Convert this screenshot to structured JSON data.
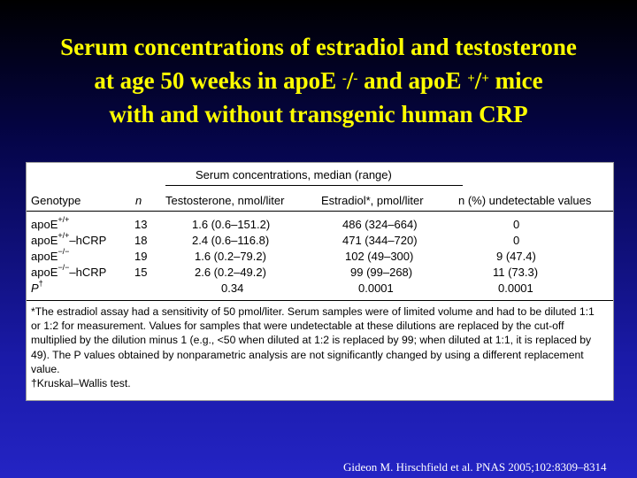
{
  "slide": {
    "title_line1": "Serum concentrations of estradiol and testosterone",
    "title_line2_pre": "at age 50 weeks in apoE ",
    "title_line2_sup1": "-",
    "title_line2_mid1": "/",
    "title_line2_sup2": "-",
    "title_line2_mid2": " and apoE ",
    "title_line2_sup3": "+",
    "title_line2_mid3": "/",
    "title_line2_sup4": "+",
    "title_line2_post": " mice",
    "title_line3": "with and without transgenic human CRP",
    "citation": "Gideon M. Hirschfield et al. PNAS 2005;102:8309–8314"
  },
  "table": {
    "span_header": "Serum concentrations, median (range)",
    "columns": [
      "Genotype",
      "n",
      "Testosterone, nmol/liter",
      "Estradiol*, pmol/liter",
      "n (%) undetectable values"
    ],
    "rows": [
      {
        "genotype": "apoE",
        "sup": "+/+",
        "suffix": "",
        "n": "13",
        "testosterone": "1.6 (0.6–151.2)",
        "estradiol": "486 (324–664)",
        "undetectable": "0"
      },
      {
        "genotype": "apoE",
        "sup": "+/+",
        "suffix": "–hCRP",
        "n": "18",
        "testosterone": "2.4 (0.6–116.8)",
        "estradiol": "471 (344–720)",
        "undetectable": "0"
      },
      {
        "genotype": "apoE",
        "sup": "−/−",
        "suffix": "",
        "n": "19",
        "testosterone": "1.6 (0.2–79.2)",
        "estradiol": "102 (49–300)",
        "undetectable": "9 (47.4)"
      },
      {
        "genotype": "apoE",
        "sup": "−/−",
        "suffix": "–hCRP",
        "n": "15",
        "testosterone": "2.6 (0.2–49.2)",
        "estradiol": "99 (99–268)",
        "undetectable": "11 (73.3)"
      }
    ],
    "p_row": {
      "label": "P",
      "sup": "†",
      "testosterone": "0.34",
      "estradiol": "0.0001",
      "undetectable": "0.0001"
    },
    "footnote1": "*The estradiol assay had a sensitivity of 50 pmol/liter. Serum samples were of limited volume and had to be diluted 1:1 or 1:2 for measurement. Values for samples that were undetectable at these dilutions are replaced by the cut-off multiplied by the dilution minus 1 (e.g., <50 when diluted at 1:2 is replaced by 99; when diluted at 1:1, it is replaced by 49). The P values obtained by nonparametric analysis are not significantly changed by using a different replacement value.",
    "footnote2": "†Kruskal–Wallis test."
  }
}
